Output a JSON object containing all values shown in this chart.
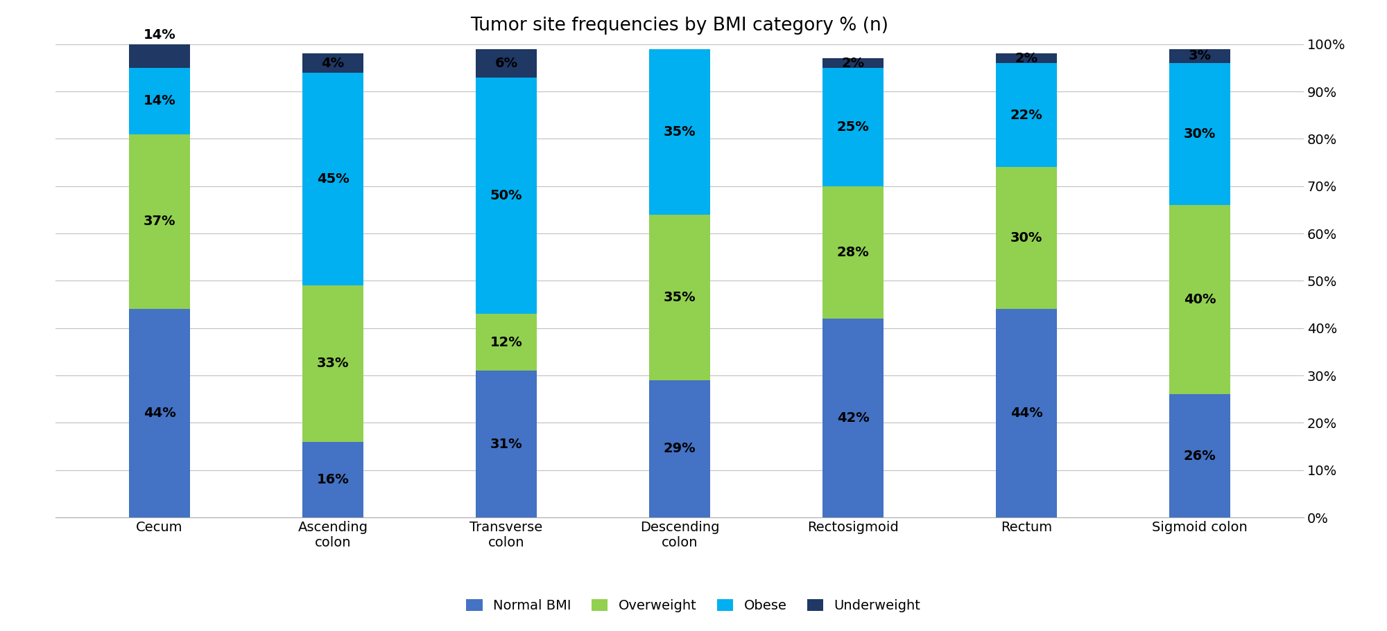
{
  "title": "Tumor site frequencies by BMI category % (n)",
  "categories": [
    "Cecum",
    "Ascending\ncolon",
    "Transverse\ncolon",
    "Descending\ncolon",
    "Rectosigmoid",
    "Rectum",
    "Sigmoid colon"
  ],
  "series": {
    "Normal BMI": [
      44,
      16,
      31,
      29,
      42,
      44,
      26
    ],
    "Overweight": [
      37,
      33,
      12,
      35,
      28,
      30,
      40
    ],
    "Obese": [
      14,
      45,
      50,
      35,
      25,
      22,
      30
    ],
    "Underweight": [
      14,
      4,
      6,
      0,
      2,
      2,
      3
    ]
  },
  "colors": {
    "Normal BMI": "#4472C4",
    "Overweight": "#92D050",
    "Obese": "#00B0F0",
    "Underweight": "#1F3864"
  },
  "legend_order": [
    "Normal BMI",
    "Overweight",
    "Obese",
    "Underweight"
  ],
  "ylim": [
    0,
    100
  ],
  "yticks": [
    0,
    10,
    20,
    30,
    40,
    50,
    60,
    70,
    80,
    90,
    100
  ],
  "ytick_labels": [
    "0%",
    "10%",
    "20%",
    "30%",
    "40%",
    "50%",
    "60%",
    "70%",
    "80%",
    "90%",
    "100%"
  ],
  "bar_width": 0.35,
  "title_fontsize": 19,
  "label_fontsize": 14,
  "tick_fontsize": 14,
  "legend_fontsize": 14,
  "background_color": "#FFFFFF",
  "grid_color": "#C0C0C0"
}
